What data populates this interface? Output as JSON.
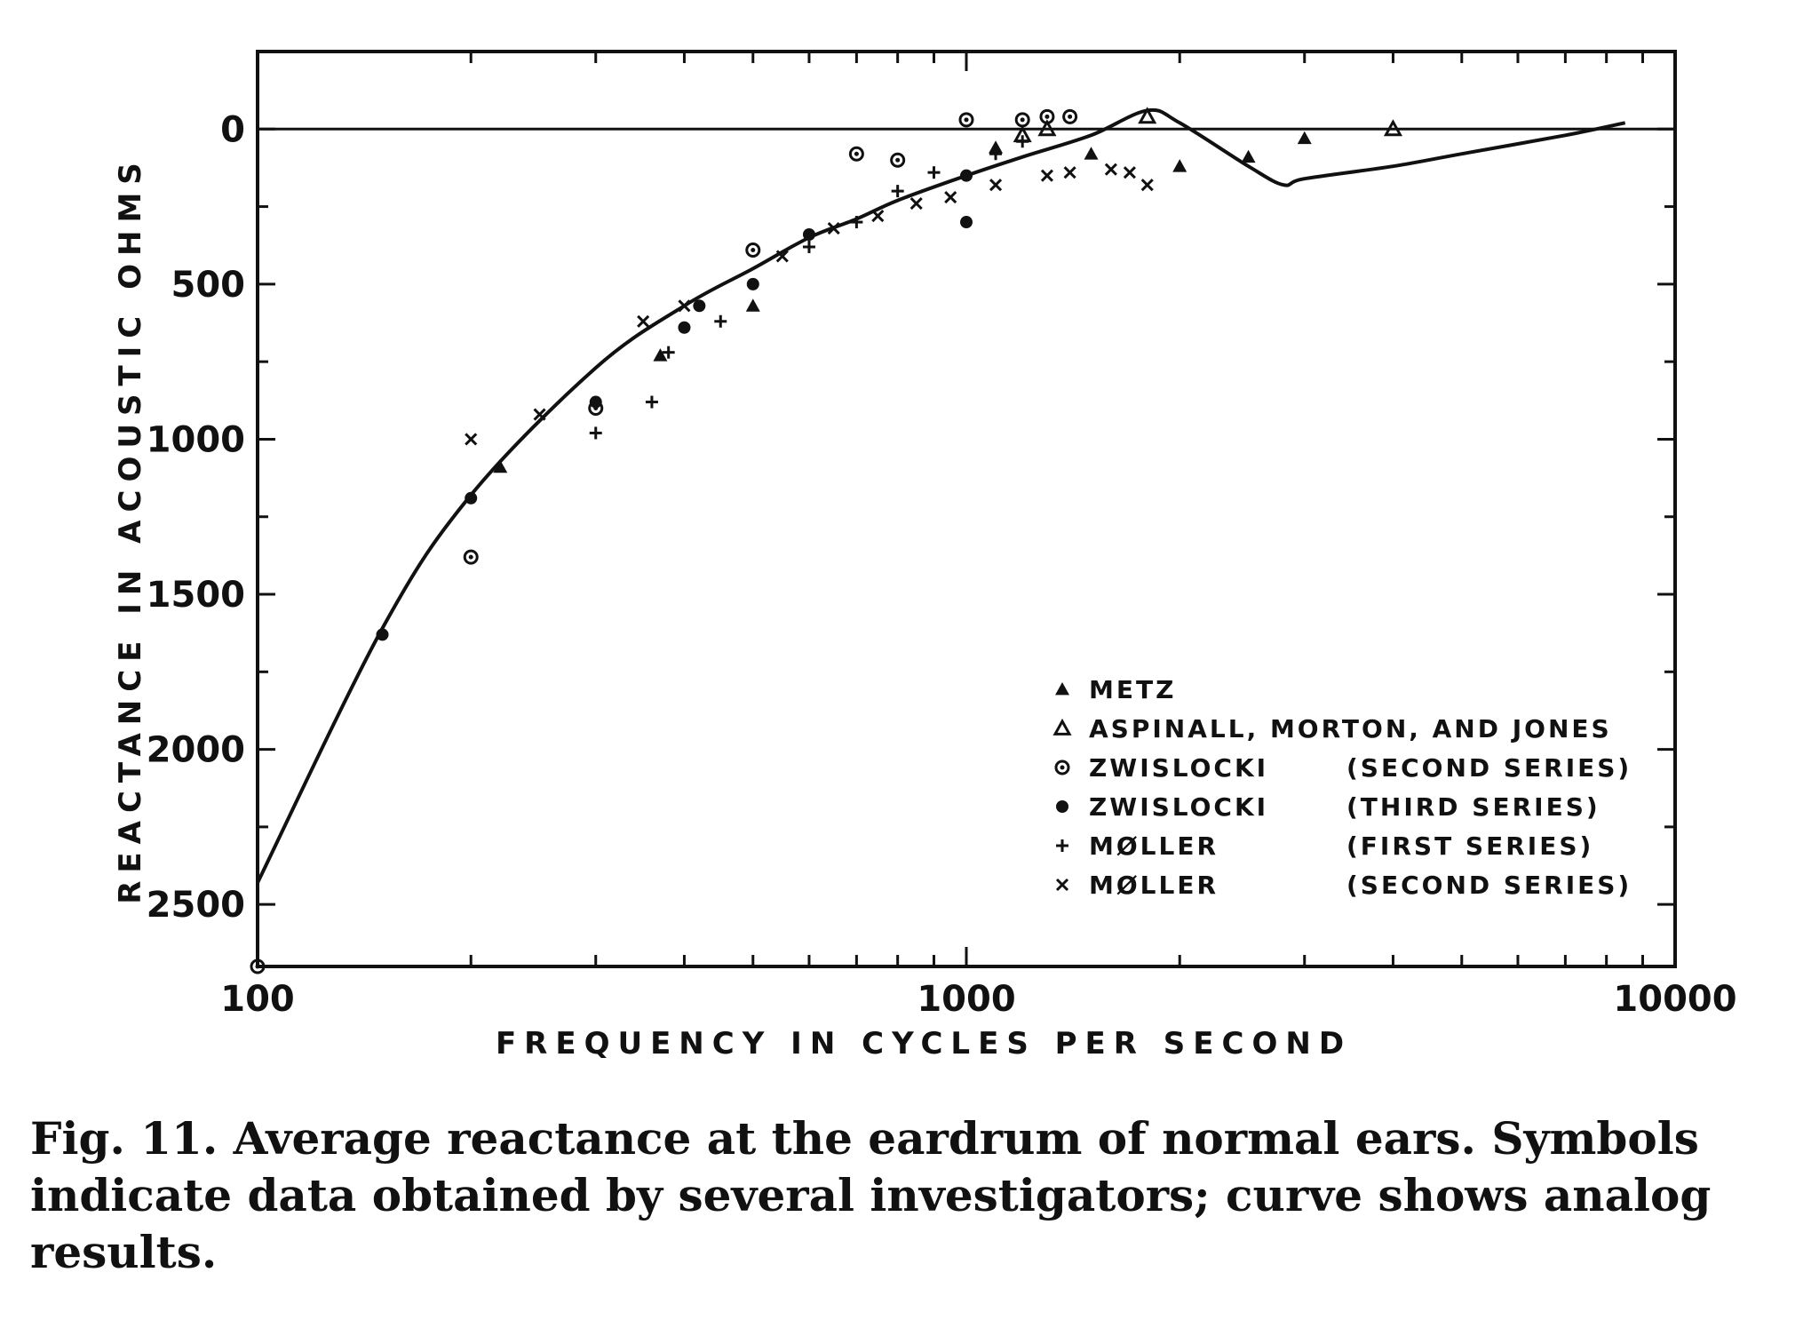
{
  "caption": "Fig. 11. Average reactance at the eardrum of normal ears. Symbols indicate data obtained by several investigators; curve shows analog results.",
  "chart_data": {
    "type": "scatter",
    "title": "",
    "xlabel": "FREQUENCY IN CYCLES PER SECOND",
    "ylabel": "REACTANCE IN ACOUSTIC OHMS",
    "x_scale": "log",
    "xlim": [
      100,
      10000
    ],
    "ylim": [
      -250,
      2700
    ],
    "y_inverted": true,
    "x_tick_labels": [
      "100",
      "1000",
      "10000"
    ],
    "x_tick_values": [
      100,
      1000,
      10000
    ],
    "y_tick_labels": [
      "0",
      "500",
      "1000",
      "1500",
      "2000",
      "2500"
    ],
    "y_tick_values": [
      0,
      500,
      1000,
      1500,
      2000,
      2500
    ],
    "zero_line": 0,
    "legend": {
      "placement": "lower-right",
      "entries": [
        {
          "symbol": "▲",
          "name": "METZ",
          "note": ""
        },
        {
          "symbol": "△",
          "name": "ASPINALL, MORTON, AND JONES",
          "note": ""
        },
        {
          "symbol": "⊙",
          "name": "ZWISLOCKI",
          "note": "(SECOND SERIES)"
        },
        {
          "symbol": "●",
          "name": "ZWISLOCKI",
          "note": "(THIRD SERIES)"
        },
        {
          "symbol": "+",
          "name": "MØLLER",
          "note": "(FIRST SERIES)"
        },
        {
          "symbol": "x",
          "name": "MØLLER",
          "note": "(SECOND SERIES)"
        }
      ]
    },
    "curve": {
      "x": [
        100,
        150,
        200,
        300,
        400,
        500,
        600,
        700,
        800,
        1000,
        1200,
        1500,
        1800,
        2000,
        2500,
        2800,
        3000,
        4000,
        5000,
        7000,
        8500
      ],
      "y": [
        2430,
        1610,
        1180,
        770,
        570,
        450,
        350,
        290,
        230,
        150,
        90,
        20,
        -60,
        -20,
        120,
        180,
        160,
        120,
        80,
        20,
        -20
      ]
    },
    "series": [
      {
        "name": "METZ",
        "marker": "filled-triangle",
        "points": [
          [
            220,
            1090
          ],
          [
            370,
            730
          ],
          [
            500,
            570
          ],
          [
            1100,
            60
          ],
          [
            1500,
            80
          ],
          [
            2000,
            120
          ],
          [
            2500,
            90
          ],
          [
            3000,
            30
          ]
        ]
      },
      {
        "name": "ASPINALL, MORTON, AND JONES",
        "marker": "open-triangle",
        "points": [
          [
            1200,
            20
          ],
          [
            1300,
            0
          ],
          [
            1800,
            -40
          ],
          [
            4000,
            0
          ]
        ]
      },
      {
        "name": "ZWISLOCKI (SECOND SERIES)",
        "marker": "circle-dot",
        "points": [
          [
            100,
            2700
          ],
          [
            200,
            1380
          ],
          [
            300,
            900
          ],
          [
            500,
            390
          ],
          [
            700,
            80
          ],
          [
            800,
            100
          ],
          [
            1000,
            -30
          ],
          [
            1200,
            -30
          ],
          [
            1300,
            -40
          ],
          [
            1400,
            -40
          ]
        ]
      },
      {
        "name": "ZWISLOCKI (THIRD SERIES)",
        "marker": "filled-circle",
        "points": [
          [
            150,
            1630
          ],
          [
            200,
            1190
          ],
          [
            300,
            880
          ],
          [
            400,
            640
          ],
          [
            420,
            570
          ],
          [
            500,
            500
          ],
          [
            600,
            340
          ],
          [
            1000,
            300
          ],
          [
            1000,
            150
          ]
        ]
      },
      {
        "name": "MØLLER (FIRST SERIES)",
        "marker": "plus",
        "points": [
          [
            300,
            980
          ],
          [
            360,
            880
          ],
          [
            380,
            720
          ],
          [
            450,
            620
          ],
          [
            600,
            380
          ],
          [
            700,
            300
          ],
          [
            800,
            200
          ],
          [
            900,
            140
          ],
          [
            1100,
            80
          ],
          [
            1200,
            40
          ]
        ]
      },
      {
        "name": "MØLLER (SECOND SERIES)",
        "marker": "x",
        "points": [
          [
            200,
            1000
          ],
          [
            250,
            920
          ],
          [
            350,
            620
          ],
          [
            400,
            570
          ],
          [
            550,
            410
          ],
          [
            650,
            320
          ],
          [
            750,
            280
          ],
          [
            850,
            240
          ],
          [
            950,
            220
          ],
          [
            1100,
            180
          ],
          [
            1300,
            150
          ],
          [
            1400,
            140
          ],
          [
            1600,
            130
          ],
          [
            1700,
            140
          ],
          [
            1800,
            180
          ]
        ]
      }
    ]
  }
}
